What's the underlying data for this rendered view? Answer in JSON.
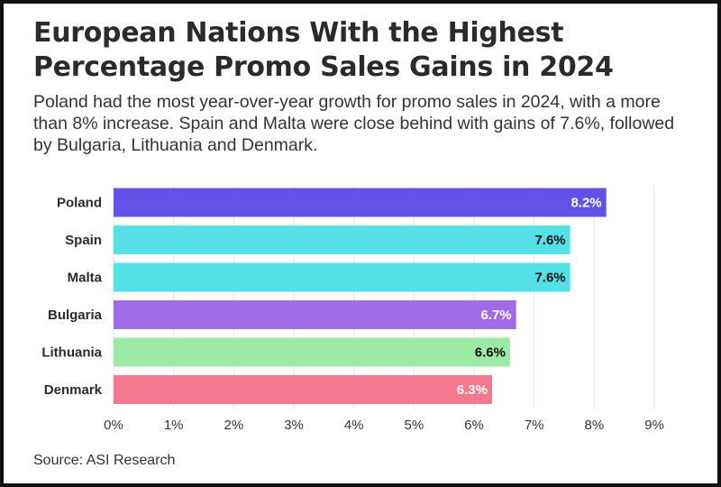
{
  "title": "European Nations With the Highest Percentage Promo Sales Gains in 2024",
  "subtitle": "Poland had the most year-over-year growth for promo sales in 2024, with a more than 8% increase. Spain and Malta were close behind with gains of 7.6%, followed by Bulgaria, Lithuania and Denmark.",
  "source": "Source: ASI Research",
  "chart_data": {
    "type": "bar",
    "orientation": "horizontal",
    "title": "European Nations With the Highest Percentage Promo Sales Gains in 2024",
    "xlabel": "",
    "ylabel": "",
    "categories": [
      "Poland",
      "Spain",
      "Malta",
      "Bulgaria",
      "Lithuania",
      "Denmark"
    ],
    "values": [
      8.2,
      7.6,
      7.6,
      6.7,
      6.6,
      6.3
    ],
    "value_labels": [
      "8.2%",
      "7.6%",
      "7.6%",
      "6.7%",
      "6.6%",
      "6.3%"
    ],
    "bar_colors": [
      "#6451e8",
      "#55dfe6",
      "#55dfe6",
      "#a06ce6",
      "#9de9a6",
      "#f6788f"
    ],
    "label_colors": [
      "#ffffff",
      "#111111",
      "#111111",
      "#ffffff",
      "#111111",
      "#ffffff"
    ],
    "xlim": [
      0,
      9
    ],
    "xticks": [
      0,
      1,
      2,
      3,
      4,
      5,
      6,
      7,
      8,
      9
    ],
    "xtick_labels": [
      "0%",
      "1%",
      "2%",
      "3%",
      "4%",
      "5%",
      "6%",
      "7%",
      "8%",
      "9%"
    ],
    "grid": true,
    "legend": "none"
  }
}
